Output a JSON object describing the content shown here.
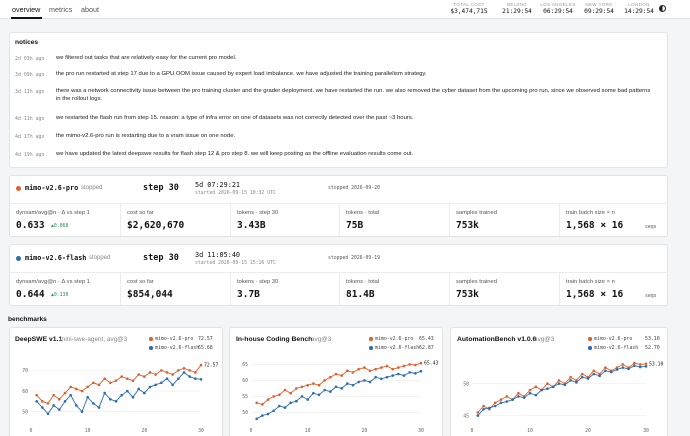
{
  "nav": {
    "tabs": [
      "overview",
      "metrics",
      "about"
    ],
    "active": "overview"
  },
  "header_stats": [
    {
      "label": "TOTAL COST",
      "value": "$3,474,715"
    },
    {
      "label": "BEIJING",
      "value": "21:29:54"
    },
    {
      "label": "LOS ANGELES",
      "value": "06:29:54"
    },
    {
      "label": "NEW YORK",
      "value": "09:29:54"
    },
    {
      "label": "LONDON",
      "value": "14:29:54"
    }
  ],
  "notices": {
    "title": "notices",
    "items": [
      {
        "age": "2d 03h ago",
        "text": "we filtered out tasks that are relatively easy for the current pro model."
      },
      {
        "age": "3d 09h ago",
        "text": "the pro run restarted at step 17 due to a GPU OOM issue caused by expert load imbalance. we have adjusted the training parallelism strategy."
      },
      {
        "age": "3d 11h ago",
        "text": "there was a network connectivity issue between the pro training cluster and the grader deployment. we have restarted the run. we also removed the cyber dataset from the upcoming pro run, since we observed some bad patterns in the rollout logs."
      },
      {
        "age": "4d 11h ago",
        "text": "we restarted the flash run from step 15. reason: a type of infra error on one of datasets was not correctly detected over the past ~3 hours."
      },
      {
        "age": "4d 17h ago",
        "text": "the mimo-v2.6-pro run is restarting due to a vram issue on one node."
      },
      {
        "age": "4d 19h ago",
        "text": "we have updated the latest deepswe results for flash step 12 & pro step 8. we will keep posting as the offline evaluation results come out."
      }
    ]
  },
  "runs": [
    {
      "name": "mimo-v2.6-pro",
      "status": "stopped",
      "color": "#e0602a",
      "step": "step 30",
      "elapsed": "5d 07:29:21",
      "started": "started 2026-09-15 10:32 UTC",
      "stopped": "stopped 2026-09-20",
      "metrics": [
        {
          "label": "dynsam/avg@n · Δ vs step 1",
          "value": "0.633",
          "sub": "▲0.068"
        },
        {
          "label": "cost so far",
          "value": "$2,620,670",
          "sub": ""
        },
        {
          "label": "tokens · step 30",
          "value": "3.43B",
          "sub": ""
        },
        {
          "label": "tokens · total",
          "value": "75B",
          "sub": ""
        },
        {
          "label": "samples trained",
          "value": "753k",
          "sub": ""
        },
        {
          "label": "train batch size × n",
          "value": "1,568 × 16",
          "sub": "seqs"
        }
      ]
    },
    {
      "name": "mimo-v2.6-flash",
      "status": "stopped",
      "color": "#2b6cb0",
      "step": "step 30",
      "elapsed": "3d 11:05:40",
      "started": "started 2026-09-15 15:16 UTC",
      "stopped": "stopped 2026-09-19",
      "metrics": [
        {
          "label": "dynsam/avg@n · Δ vs step 1",
          "value": "0.644",
          "sub": "▲0.130"
        },
        {
          "label": "cost so far",
          "value": "$854,044",
          "sub": ""
        },
        {
          "label": "tokens · step 30",
          "value": "3.7B",
          "sub": ""
        },
        {
          "label": "tokens · total",
          "value": "81.4B",
          "sub": ""
        },
        {
          "label": "samples trained",
          "value": "753k",
          "sub": ""
        },
        {
          "label": "train batch size × n",
          "value": "1,568 × 16",
          "sub": "seqs"
        }
      ]
    }
  ],
  "benchmarks_title": "benchmarks",
  "colors": {
    "pro": "#e0602a",
    "flash": "#2b6cb0"
  },
  "chart_data": [
    {
      "type": "line",
      "title": "DeepSWE v1.1",
      "subtitle": "mini-swe-agent, avg@3",
      "x": [
        1,
        2,
        3,
        4,
        5,
        6,
        7,
        8,
        9,
        10,
        11,
        12,
        13,
        14,
        15,
        16,
        17,
        18,
        19,
        20,
        21,
        22,
        23,
        24,
        25,
        26,
        27,
        28,
        29,
        30
      ],
      "series": [
        {
          "name": "mimo-v2.6-pro",
          "legend_value": "72.57",
          "values": [
            58,
            55,
            54,
            58,
            56,
            59,
            62,
            61,
            60,
            62,
            64,
            63,
            66,
            64,
            65,
            67,
            66,
            65,
            68,
            67,
            69,
            68,
            70,
            69,
            68,
            70,
            71,
            70,
            69,
            72.57
          ]
        },
        {
          "name": "mimo-v2.6-flash",
          "legend_value": "65.68",
          "values": [
            55,
            52,
            49,
            53,
            51,
            55,
            58,
            53,
            50,
            57,
            54,
            52,
            59,
            56,
            55,
            58,
            60,
            57,
            61,
            59,
            62,
            63,
            64,
            66,
            63,
            66,
            69,
            67,
            66,
            65.68
          ]
        }
      ],
      "yticks": [
        50,
        60,
        70
      ],
      "ylim": [
        45,
        76
      ],
      "xticks": [
        0,
        10,
        20,
        30
      ],
      "end_label": "72.57"
    },
    {
      "type": "line",
      "title": "In-house Coding Bench",
      "subtitle": "avg@3",
      "x": [
        1,
        2,
        3,
        4,
        5,
        6,
        7,
        8,
        9,
        10,
        11,
        12,
        13,
        14,
        15,
        16,
        17,
        18,
        19,
        20,
        21,
        22,
        23,
        24,
        25,
        26,
        27,
        28,
        29,
        30
      ],
      "series": [
        {
          "name": "mimo-v2.6-pro",
          "legend_value": "65.43",
          "values": [
            53,
            52.5,
            54,
            55,
            55.5,
            57,
            56,
            57.5,
            58,
            58.5,
            59,
            58.5,
            60,
            61,
            62,
            61.5,
            63,
            62.5,
            63.5,
            64,
            63,
            63.5,
            64,
            64.5,
            63.5,
            64,
            64.5,
            65,
            64.8,
            65.43
          ]
        },
        {
          "name": "mimo-v2.6-flash",
          "legend_value": "62.87",
          "values": [
            48,
            49,
            49.5,
            50.5,
            52,
            51.5,
            53,
            53.5,
            55,
            54,
            56,
            55.5,
            57,
            56.5,
            58,
            57.5,
            59,
            58.5,
            59.5,
            60,
            59.5,
            61,
            60.5,
            61,
            61.5,
            62,
            61.5,
            62.5,
            62.2,
            62.87
          ]
        }
      ],
      "yticks": [
        50,
        55,
        60,
        65
      ],
      "ylim": [
        47,
        67
      ],
      "xticks": [
        0,
        10,
        20,
        30
      ],
      "end_label": "65.43"
    },
    {
      "type": "line",
      "title": "AutomationBench v1.0.6",
      "subtitle": "avg@3",
      "x": [
        1,
        2,
        3,
        4,
        5,
        6,
        7,
        8,
        9,
        10,
        11,
        12,
        13,
        14,
        15,
        16,
        17,
        18,
        19,
        20,
        21,
        22,
        23,
        24,
        25,
        26,
        27,
        28,
        29,
        30
      ],
      "series": [
        {
          "name": "mimo-v2.6-pro",
          "legend_value": "53.10",
          "values": [
            45.5,
            46.5,
            46,
            47,
            47.5,
            48,
            47.5,
            48.5,
            48,
            49,
            49.5,
            49,
            50,
            49.5,
            50.5,
            50,
            51,
            50.5,
            51.5,
            51,
            52,
            51.5,
            52.5,
            52,
            52.5,
            53,
            52.5,
            53.2,
            53,
            53.1
          ]
        },
        {
          "name": "mimo-v2.6-flash",
          "legend_value": "52.70",
          "values": [
            45,
            46,
            46.2,
            46.5,
            47,
            47.2,
            47.5,
            48,
            47.8,
            48.5,
            48.2,
            49,
            49.2,
            49.5,
            50,
            49.8,
            50.5,
            50.2,
            51,
            50.8,
            51.5,
            51.2,
            52,
            51.8,
            52.2,
            52.5,
            52.3,
            52.8,
            52.6,
            52.7
          ]
        }
      ],
      "yticks": [
        45,
        50
      ],
      "ylim": [
        44,
        54
      ],
      "xticks": [
        0,
        10,
        20,
        30
      ],
      "end_label": "53.10"
    }
  ]
}
